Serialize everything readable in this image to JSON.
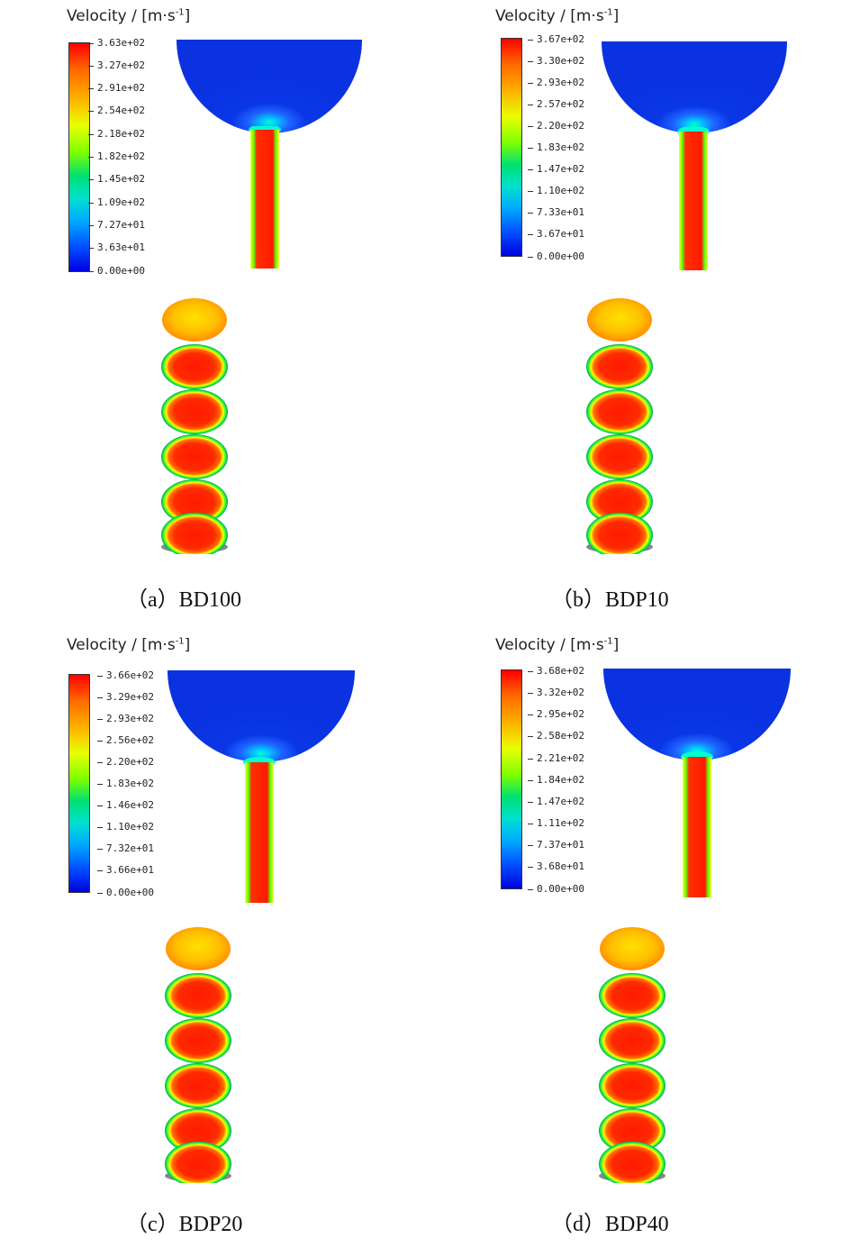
{
  "panels": [
    {
      "id": "a",
      "unit_label": "Velocity / [m·s",
      "unit_exp": "-1",
      "unit_close": "]",
      "ticks": [
        "3.63e+02",
        "3.27e+02",
        "2.91e+02",
        "2.54e+02",
        "2.18e+02",
        "1.82e+02",
        "1.45e+02",
        "1.09e+02",
        "7.27e+01",
        "3.63e+01",
        "0.00e+00"
      ],
      "caption": "（a）BD100"
    },
    {
      "id": "b",
      "unit_label": "Velocity / [m·s",
      "unit_exp": "-1",
      "unit_close": "]",
      "ticks": [
        "3.67e+02",
        "3.30e+02",
        "2.93e+02",
        "2.57e+02",
        "2.20e+02",
        "1.83e+02",
        "1.47e+02",
        "1.10e+02",
        "7.33e+01",
        "3.67e+01",
        "0.00e+00"
      ],
      "caption": "（b）BDP10"
    },
    {
      "id": "c",
      "unit_label": "Velocity / [m·s",
      "unit_exp": "-1",
      "unit_close": "]",
      "ticks": [
        "3.66e+02",
        "3.29e+02",
        "2.93e+02",
        "2.56e+02",
        "2.20e+02",
        "1.83e+02",
        "1.46e+02",
        "1.10e+02",
        "7.32e+01",
        "3.66e+01",
        "0.00e+00"
      ],
      "caption": "（c）BDP20"
    },
    {
      "id": "d",
      "unit_label": "Velocity / [m·s",
      "unit_exp": "-1",
      "unit_close": "]",
      "ticks": [
        "3.68e+02",
        "3.32e+02",
        "2.95e+02",
        "2.58e+02",
        "2.21e+02",
        "1.84e+02",
        "1.47e+02",
        "1.11e+02",
        "7.37e+01",
        "3.68e+01",
        "0.00e+00"
      ],
      "caption": "（d）BDP40"
    }
  ],
  "colors": {
    "low": "#0000e0",
    "high": "#ff0000",
    "mid": "#7dff00"
  }
}
